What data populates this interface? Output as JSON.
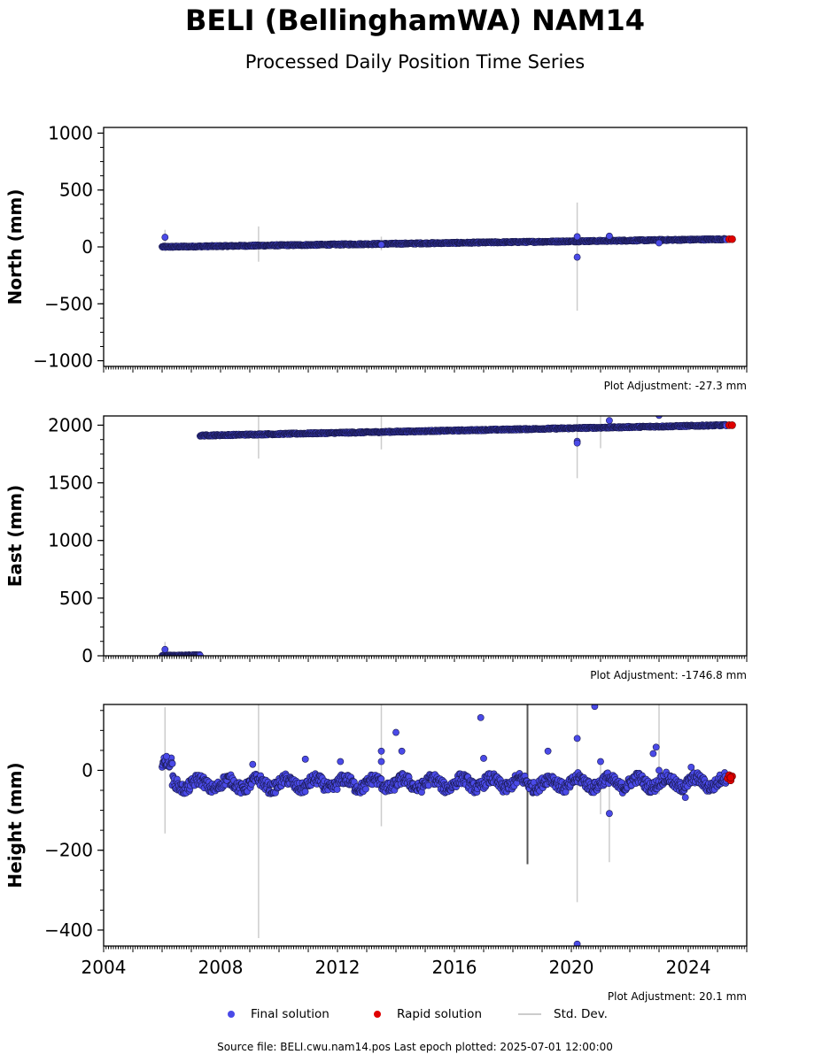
{
  "page": {
    "title": "BELI (BellinghamWA) NAM14",
    "subtitle": "Processed Daily Position Time Series",
    "footer": "Source file: BELI.cwu.nam14.pos  Last epoch plotted: 2025-07-01 12:00:00"
  },
  "legend": {
    "final_label": "Final solution",
    "rapid_label": "Rapid solution",
    "std_label": "Std. Dev."
  },
  "colors": {
    "final": "#4a4ae8",
    "final_edge": "#1a1a50",
    "rapid": "#e00000",
    "stddev": "#cccccc"
  },
  "chart_data": [
    {
      "type": "scatter",
      "ylabel": "North (mm)",
      "ylim": [
        -1050,
        1050
      ],
      "yticks": [
        -1000,
        -500,
        0,
        500,
        1000
      ],
      "ytick_labels": [
        "−1000",
        "−500",
        "0",
        "500",
        "1000"
      ],
      "xlim": [
        2004,
        2026
      ],
      "annotation": "Plot Adjustment: -27.3 mm",
      "series": [
        {
          "name": "Final solution",
          "segments": [
            {
              "x0": 2006.0,
              "x1": 2025.3,
              "y0": 0,
              "y1": 68,
              "noise": 6
            }
          ],
          "outliers": [
            {
              "x": 2006.1,
              "y": 85
            },
            {
              "x": 2020.2,
              "y": 90
            },
            {
              "x": 2020.2,
              "y": -90
            },
            {
              "x": 2021.3,
              "y": 95
            },
            {
              "x": 2023.0,
              "y": 35
            },
            {
              "x": 2013.5,
              "y": 20
            }
          ]
        },
        {
          "name": "Rapid solution",
          "points": [
            {
              "x": 2025.4,
              "y": 68
            },
            {
              "x": 2025.5,
              "y": 68
            }
          ]
        }
      ],
      "stddev_bars": [
        {
          "x": 2006.1,
          "lo": -30,
          "hi": 150
        },
        {
          "x": 2009.3,
          "lo": -130,
          "hi": 180
        },
        {
          "x": 2013.5,
          "lo": -30,
          "hi": 90
        },
        {
          "x": 2020.2,
          "lo": -560,
          "hi": 390
        }
      ]
    },
    {
      "type": "scatter",
      "ylabel": "East (mm)",
      "ylim": [
        0,
        2080
      ],
      "yticks": [
        0,
        500,
        1000,
        1500,
        2000
      ],
      "ytick_labels": [
        "0",
        "500",
        "1000",
        "1500",
        "2000"
      ],
      "xlim": [
        2004,
        2026
      ],
      "annotation": "Plot Adjustment: -1746.8 mm",
      "series": [
        {
          "name": "Final solution",
          "segments": [
            {
              "x0": 2006.0,
              "x1": 2007.3,
              "y0": 0,
              "y1": 5,
              "noise": 5
            },
            {
              "x0": 2007.3,
              "x1": 2025.3,
              "y0": 1910,
              "y1": 2000,
              "noise": 6
            }
          ],
          "outliers": [
            {
              "x": 2006.1,
              "y": 55
            },
            {
              "x": 2020.2,
              "y": 1860
            },
            {
              "x": 2020.2,
              "y": 1845
            },
            {
              "x": 2021.3,
              "y": 2040
            },
            {
              "x": 2023.0,
              "y": 2085
            }
          ]
        },
        {
          "name": "Rapid solution",
          "points": [
            {
              "x": 2025.4,
              "y": 2000
            },
            {
              "x": 2025.5,
              "y": 2000
            }
          ]
        }
      ],
      "stddev_bars": [
        {
          "x": 2006.1,
          "lo": -20,
          "hi": 120
        },
        {
          "x": 2009.3,
          "lo": 1710,
          "hi": 2080
        },
        {
          "x": 2013.5,
          "lo": 1790,
          "hi": 2080
        },
        {
          "x": 2020.2,
          "lo": 1540,
          "hi": 2080
        },
        {
          "x": 2021.0,
          "lo": 1800,
          "hi": 2080
        }
      ]
    },
    {
      "type": "scatter",
      "ylabel": "Height (mm)",
      "ylim": [
        -440,
        165
      ],
      "yticks": [
        -400,
        -200,
        0
      ],
      "ytick_labels": [
        "−400",
        "−200",
        "0"
      ],
      "xlim": [
        2004,
        2026
      ],
      "xticks": [
        2004,
        2008,
        2012,
        2016,
        2020,
        2024
      ],
      "xtick_labels": [
        "2004",
        "2008",
        "2012",
        "2016",
        "2020",
        "2024"
      ],
      "annotation": "Plot Adjustment: 20.1 mm",
      "series": [
        {
          "name": "Final solution",
          "segments": [
            {
              "x0": 2006.0,
              "x1": 2006.35,
              "y0": 20,
              "y1": 20,
              "noise": 12
            },
            {
              "x0": 2006.35,
              "x1": 2025.3,
              "y0": -35,
              "y1": -30,
              "noise": 14,
              "seasonal": 12
            }
          ],
          "outliers": [
            {
              "x": 2006.15,
              "y": 35
            },
            {
              "x": 2009.1,
              "y": 15
            },
            {
              "x": 2010.9,
              "y": 28
            },
            {
              "x": 2012.1,
              "y": 22
            },
            {
              "x": 2013.5,
              "y": 48
            },
            {
              "x": 2013.5,
              "y": 22
            },
            {
              "x": 2014.0,
              "y": 95
            },
            {
              "x": 2014.2,
              "y": 48
            },
            {
              "x": 2016.9,
              "y": 132
            },
            {
              "x": 2017.0,
              "y": 30
            },
            {
              "x": 2019.2,
              "y": 48
            },
            {
              "x": 2020.2,
              "y": 80
            },
            {
              "x": 2020.2,
              "y": -435
            },
            {
              "x": 2020.8,
              "y": 160
            },
            {
              "x": 2021.0,
              "y": 22
            },
            {
              "x": 2021.3,
              "y": -108
            },
            {
              "x": 2022.8,
              "y": 42
            },
            {
              "x": 2022.9,
              "y": 58
            },
            {
              "x": 2023.0,
              "y": 0
            },
            {
              "x": 2023.9,
              "y": -68
            },
            {
              "x": 2024.1,
              "y": 8
            }
          ]
        },
        {
          "name": "Rapid solution",
          "points": [
            {
              "x": 2025.35,
              "y": -20
            },
            {
              "x": 2025.4,
              "y": -12
            },
            {
              "x": 2025.45,
              "y": -25
            },
            {
              "x": 2025.5,
              "y": -15
            },
            {
              "x": 2025.45,
              "y": -18
            }
          ]
        }
      ],
      "stddev_bars": [
        {
          "x": 2006.1,
          "lo": -158,
          "hi": 158
        },
        {
          "x": 2009.3,
          "lo": -420,
          "hi": 165
        },
        {
          "x": 2013.5,
          "lo": -140,
          "hi": 165
        },
        {
          "x": 2018.5,
          "lo": -235,
          "hi": 165,
          "dark": true
        },
        {
          "x": 2020.2,
          "lo": -330,
          "hi": 165
        },
        {
          "x": 2021.0,
          "lo": -110,
          "hi": 30
        },
        {
          "x": 2021.3,
          "lo": -230,
          "hi": 0
        },
        {
          "x": 2023.0,
          "lo": -60,
          "hi": 165
        }
      ]
    }
  ]
}
